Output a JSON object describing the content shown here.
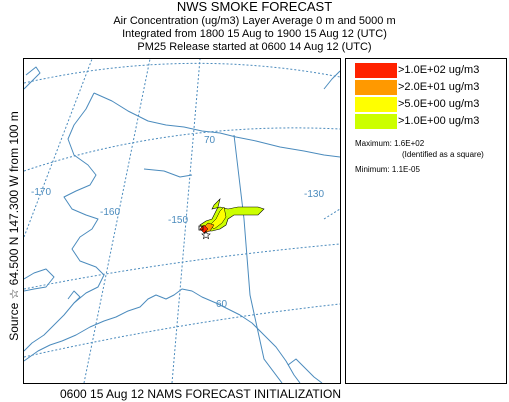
{
  "header": {
    "title": "NWS SMOKE FORECAST",
    "line1": "Air Concentration (ug/m3) Layer Average    0 m and  5000 m",
    "line2": "Integrated from 1800 15 Aug to 1900 15 Aug 12 (UTC)",
    "line3": "PM25 Release started at 0600 14 Aug 12 (UTC)"
  },
  "side_label": "Source ☆ 64.500 N 147.300 W    from  100 m",
  "bottom_label": "0600 15 Aug 12 NAMS FORECAST INITIALIZATION",
  "map": {
    "lon_labels": [
      "-170",
      "-160",
      "-150",
      "-130"
    ],
    "lat_labels": [
      "70",
      "60"
    ],
    "colors": {
      "coast": "#4b8bbd",
      "grid": "#4b8bbd"
    },
    "source_marker": "star-icon"
  },
  "legend": {
    "items": [
      {
        "label": ">1.0E+02 ug/m3",
        "color": "#ff2200"
      },
      {
        "label": ">2.0E+01 ug/m3",
        "color": "#ff9900"
      },
      {
        "label": ">5.0E+00 ug/m3",
        "color": "#ffff00"
      },
      {
        "label": ">1.0E+00 ug/m3",
        "color": "#ccff00"
      }
    ],
    "maximum": "Maximum: 1.6E+02",
    "maximum_note": "(Identified as a square)",
    "minimum": "Minimum: 1.1E-05"
  }
}
